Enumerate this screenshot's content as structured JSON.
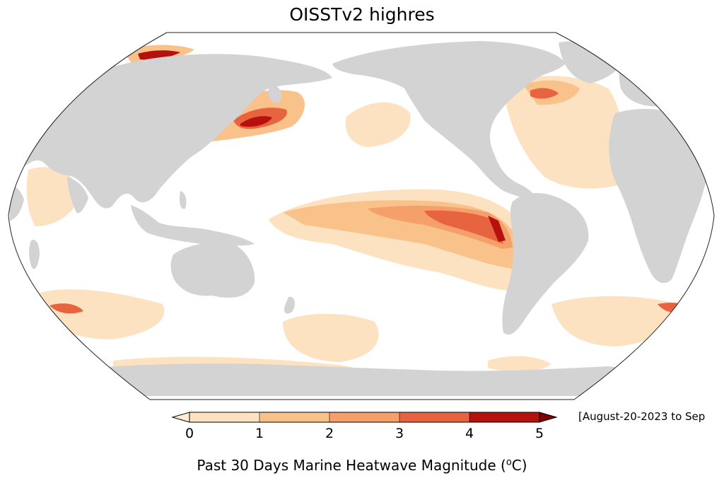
{
  "title": "OISSTv2 highres",
  "date_range": "[August-20-2023 to Sep",
  "colorbar": {
    "label_prefix": "Past 30 Days Marine Heatwave Magnitude (",
    "label_unit_sup": "o",
    "label_suffix": "C)",
    "ticks": [
      "0",
      "1",
      "2",
      "3",
      "4",
      "5"
    ],
    "colors": [
      "#fde2c2",
      "#f9c28a",
      "#f5a06a",
      "#e8633f",
      "#b5120d",
      "#7f0000"
    ],
    "min": 0,
    "max": 5,
    "extend": "both"
  },
  "map": {
    "projection": "Robinson, Pacific-centered",
    "ocean_color": "#ffffff",
    "land_color": "#d3d3d3",
    "coastline_color": "#000000"
  }
}
